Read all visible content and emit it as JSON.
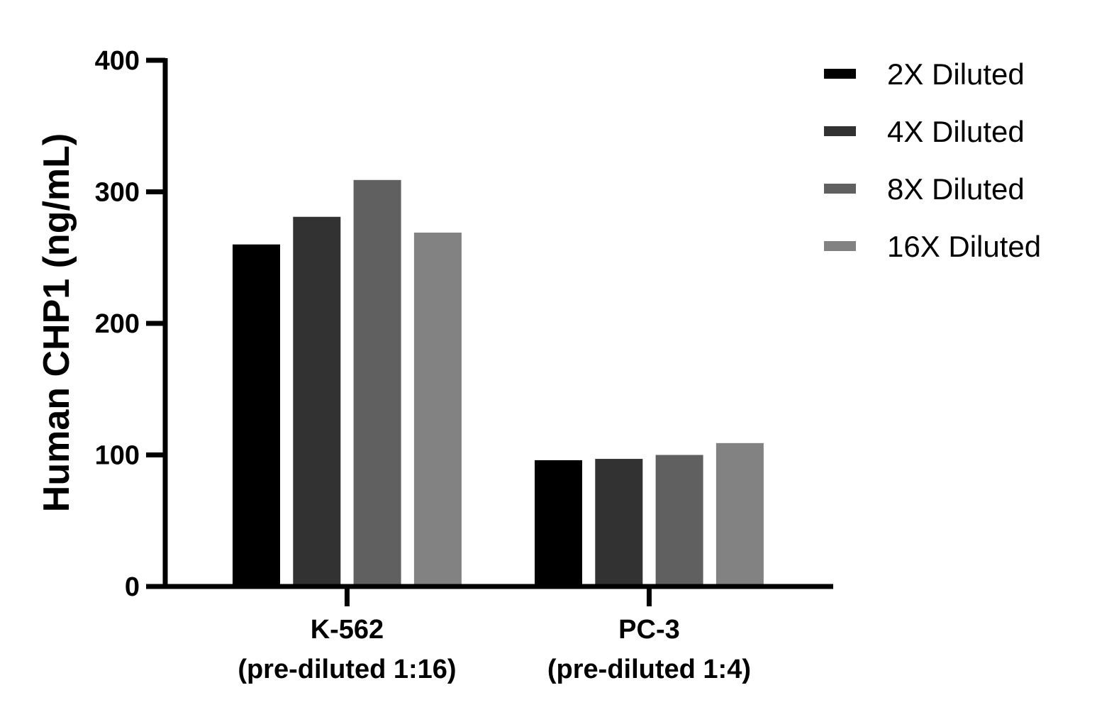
{
  "chart_data": {
    "type": "bar",
    "title": "",
    "xlabel": "",
    "ylabel": "Human CHP1 (ng/mL)",
    "ylim": [
      0,
      400
    ],
    "yticks": [
      0,
      100,
      200,
      300,
      400
    ],
    "grid": false,
    "legend_position": "top-right",
    "categories": [
      [
        "K-562",
        "(pre-diluted 1:16)"
      ],
      [
        "PC-3",
        "(pre-diluted 1:4)"
      ]
    ],
    "series": [
      {
        "name": "2X Diluted",
        "color": "#000000",
        "values": [
          260,
          96
        ]
      },
      {
        "name": "4X Diluted",
        "color": "#323232",
        "values": [
          281,
          97
        ]
      },
      {
        "name": "8X Diluted",
        "color": "#606060",
        "values": [
          309,
          100
        ]
      },
      {
        "name": "16X Diluted",
        "color": "#828282",
        "values": [
          269,
          109
        ]
      }
    ]
  }
}
